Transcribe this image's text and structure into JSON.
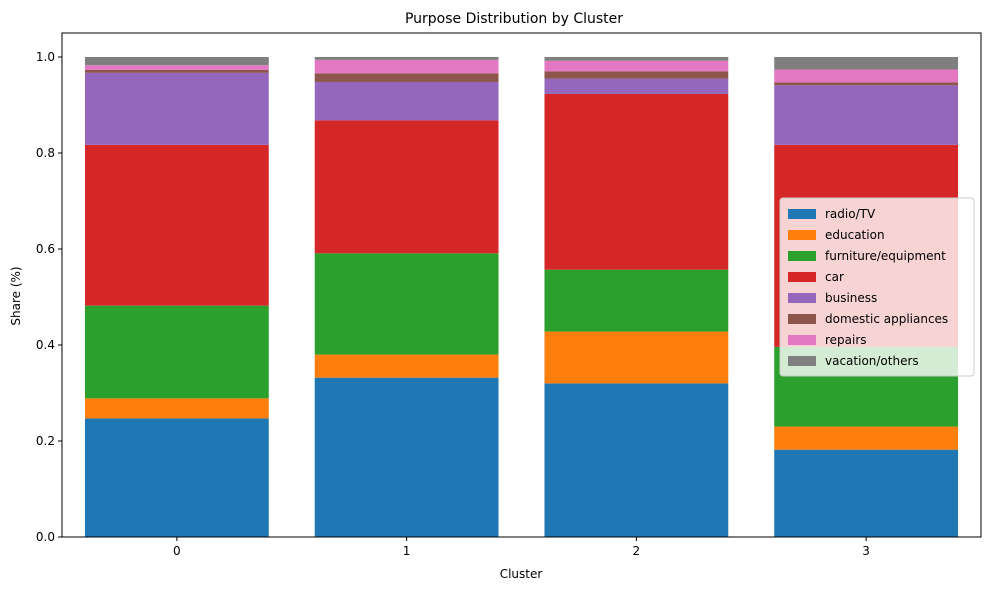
{
  "chart_data": {
    "type": "bar",
    "stacked": true,
    "title": "Purpose Distribution by Cluster",
    "xlabel": "Cluster",
    "ylabel": "Share (%)",
    "categories": [
      "0",
      "1",
      "2",
      "3"
    ],
    "ylim": [
      0,
      1.05
    ],
    "yticks": [
      0.0,
      0.2,
      0.4,
      0.6,
      0.8,
      1.0
    ],
    "ytick_labels": [
      "0.0",
      "0.2",
      "0.4",
      "0.6",
      "0.8",
      "1.0"
    ],
    "grid": false,
    "legend_position": "center-right",
    "series": [
      {
        "name": "radio/TV",
        "color": "#1f77b4",
        "values": [
          0.247,
          0.332,
          0.32,
          0.182
        ]
      },
      {
        "name": "education",
        "color": "#ff7f0e",
        "values": [
          0.042,
          0.048,
          0.108,
          0.048
        ]
      },
      {
        "name": "furniture/equipment",
        "color": "#2ca02c",
        "values": [
          0.193,
          0.211,
          0.129,
          0.166
        ]
      },
      {
        "name": "car",
        "color": "#d62728",
        "values": [
          0.335,
          0.277,
          0.366,
          0.421
        ]
      },
      {
        "name": "business",
        "color": "#9467bd",
        "values": [
          0.15,
          0.08,
          0.032,
          0.124
        ]
      },
      {
        "name": "domestic appliances",
        "color": "#8c564b",
        "values": [
          0.006,
          0.018,
          0.015,
          0.006
        ]
      },
      {
        "name": "repairs",
        "color": "#e377c2",
        "values": [
          0.01,
          0.028,
          0.022,
          0.027
        ]
      },
      {
        "name": "vacation/others",
        "color": "#7f7f7f",
        "values": [
          0.017,
          0.006,
          0.008,
          0.026
        ]
      }
    ]
  }
}
